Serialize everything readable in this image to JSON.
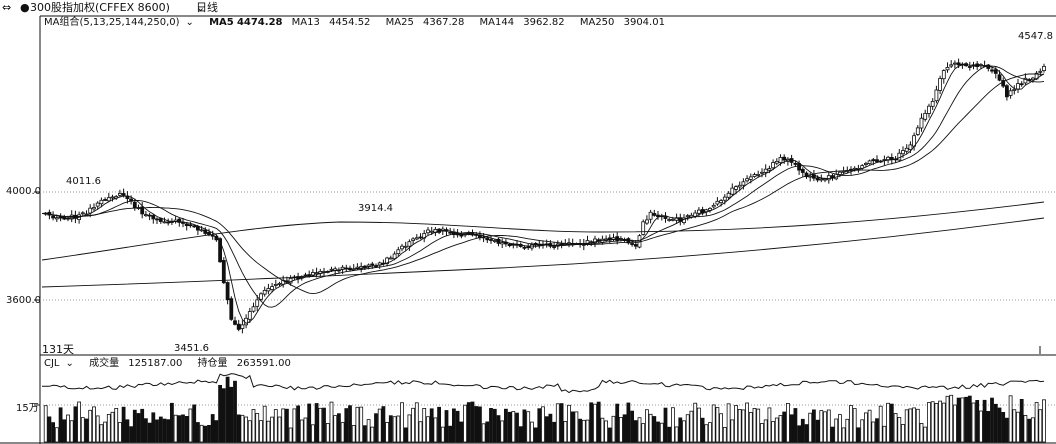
{
  "topbar": {
    "nav_icon": "link-arrows-icon",
    "symbol": "300股指加权(CFFEX 8600)",
    "period": "日线"
  },
  "ma_legend": {
    "indicator": "MA组合(5,13,25,144,250,0)",
    "items": [
      {
        "label": "MA5",
        "value": "4474.28"
      },
      {
        "label": "MA13",
        "value": "4454.52"
      },
      {
        "label": "MA25",
        "value": "4367.28"
      },
      {
        "label": "MA144",
        "value": "3962.82"
      },
      {
        "label": "MA250",
        "value": "3904.01"
      }
    ]
  },
  "price_axis": {
    "ticks": [
      "4000.0",
      "3600.0"
    ]
  },
  "annotations": {
    "high_left": "4011.6",
    "mid_high": "3914.4",
    "low": "3451.6",
    "high_right": "4547.8",
    "days": "131天"
  },
  "volume_panel": {
    "indicator": "CJL",
    "volume_label": "成交量",
    "volume_value": "125187.00",
    "oi_label": "持仓量",
    "oi_value": "263591.00",
    "axis_tick": "15万"
  },
  "colors": {
    "line": "#111111",
    "grid": "#9a9a9a",
    "background": "#ffffff"
  }
}
